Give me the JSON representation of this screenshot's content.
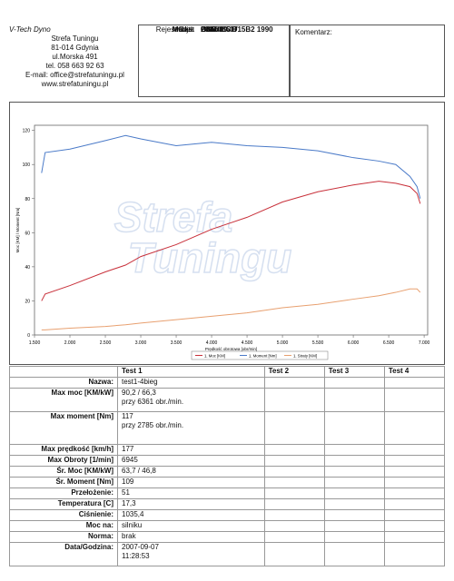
{
  "header": {
    "company": [
      "V-Tech Dyno",
      "Strefa Tuningu",
      "81-014 Gdynia",
      "ul.Morska 491",
      "tel. 058 663 92 63",
      "E-mail: office@strefatuningu.pl",
      "www.strefatuningu.pl"
    ],
    "info": [
      {
        "label": "Klient",
        "value": "C00li"
      },
      {
        "label": "Rejestracja:",
        "value": "GSP 08CH"
      },
      {
        "label": "Marka:",
        "value": "Honda"
      },
      {
        "label": "Model:",
        "value": "Civic 1.5 D15B2 1990"
      },
      {
        "label": "Data",
        "value": "2007-09-07"
      }
    ],
    "comment_label": "Komentarz:"
  },
  "chart_data": {
    "type": "line",
    "x_label": "Prędkość obrotowa [obr/min]",
    "y_label": "Moc [KM] / Moment [Nm]",
    "watermark": [
      "Strefa",
      "Tuningu"
    ],
    "x": [
      1600,
      1650,
      2000,
      2500,
      2785,
      3000,
      3500,
      4000,
      4500,
      5000,
      5500,
      6000,
      6361,
      6600,
      6800,
      6900,
      6945
    ],
    "series": [
      {
        "name": "1. Moc [KM]",
        "color": "#c8303a",
        "values": [
          20,
          24,
          29,
          37,
          41,
          46,
          53,
          62,
          69,
          78,
          84,
          88,
          90.2,
          89,
          87,
          83,
          77
        ]
      },
      {
        "name": "1. Moment [Nm]",
        "color": "#4a7ac8",
        "values": [
          95,
          107,
          109,
          114,
          117,
          115,
          111,
          113,
          111,
          110,
          108,
          104,
          102,
          100,
          93,
          87,
          80
        ]
      },
      {
        "name": "1. Straty [KM]",
        "color": "#e8a070",
        "values": [
          3,
          3,
          4,
          5,
          6,
          7,
          9,
          11,
          13,
          16,
          18,
          21,
          23,
          25,
          27,
          27,
          25
        ]
      }
    ],
    "xlim": [
      1500,
      7050
    ],
    "ylim": [
      0,
      123
    ],
    "xticks": [
      {
        "value": 1500,
        "label": "1.500"
      },
      {
        "value": 2000,
        "label": "2.000"
      },
      {
        "value": 2500,
        "label": "2.500"
      },
      {
        "value": 3000,
        "label": "3.000"
      },
      {
        "value": 3500,
        "label": "3.500"
      },
      {
        "value": 4000,
        "label": "4.000"
      },
      {
        "value": 4500,
        "label": "4.500"
      },
      {
        "value": 5000,
        "label": "5.000"
      },
      {
        "value": 5500,
        "label": "5.500"
      },
      {
        "value": 6000,
        "label": "6.000"
      },
      {
        "value": 6500,
        "label": "6.500"
      },
      {
        "value": 7000,
        "label": "7.000"
      }
    ],
    "yticks": [
      0,
      20,
      40,
      60,
      80,
      100,
      120
    ],
    "grid": false,
    "legend": "bottom"
  },
  "table": {
    "columns": [
      "Test 1",
      "Test 2",
      "Test 3",
      "Test 4"
    ],
    "rows": [
      {
        "label": "Nazwa:",
        "values": [
          "test1-4bieg"
        ]
      },
      {
        "label": "Max moc [KM/kW]",
        "values": [
          "90,2 / 66,3",
          "przy 6361 obr./min."
        ]
      },
      {
        "label": "Max moment [Nm]",
        "values": [
          "117",
          "przy 2785 obr./min."
        ]
      },
      {
        "label": "Max prędkość [km/h]",
        "values": [
          "177"
        ]
      },
      {
        "label": "Max Obroty [1/min]",
        "values": [
          "6945"
        ]
      },
      {
        "label": "Śr. Moc [KM/kW]",
        "values": [
          "63,7 / 46,8"
        ]
      },
      {
        "label": "Śr. Moment [Nm]",
        "values": [
          "109"
        ]
      },
      {
        "label": "Przełożenie:",
        "values": [
          "51"
        ]
      },
      {
        "label": "Temperatura [C]",
        "values": [
          "17,3"
        ]
      },
      {
        "label": "Ciśnienie:",
        "values": [
          "1035,4"
        ]
      },
      {
        "label": "Moc na:",
        "values": [
          "silniku"
        ]
      },
      {
        "label": "Norma:",
        "values": [
          "brak"
        ]
      },
      {
        "label": "Data/Godzina:",
        "values": [
          "2007-09-07",
          "11:28:53"
        ]
      }
    ]
  }
}
